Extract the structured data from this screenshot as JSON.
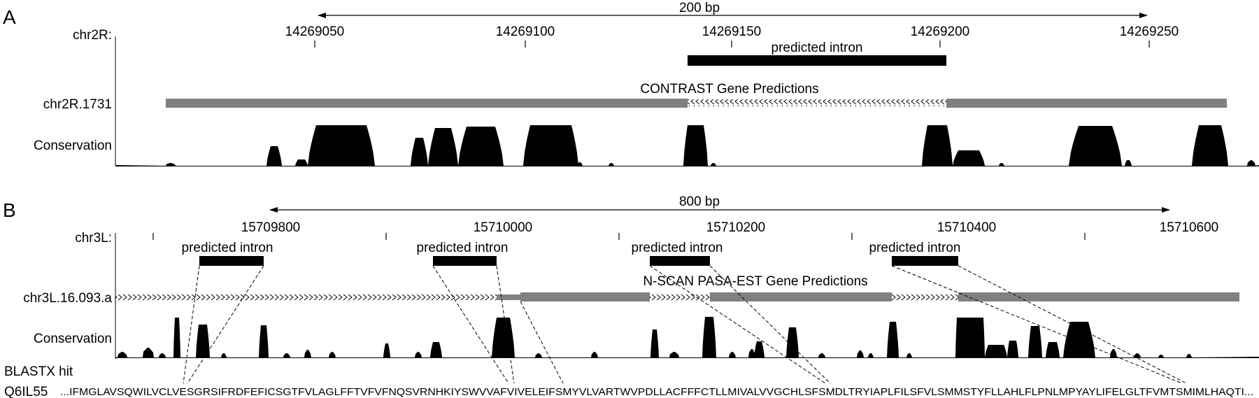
{
  "panel_a": {
    "letter": "A",
    "scale_label": "200 bp",
    "chrom_label": "chr2R:",
    "ticks": [
      "14269050",
      "14269100",
      "14269150",
      "14269200",
      "14269250"
    ],
    "intron_label": "predicted intron",
    "track_title": "CONTRAST Gene Predictions",
    "gene_label": "chr2R.1731",
    "conservation_label": "Conservation"
  },
  "panel_b": {
    "letter": "B",
    "scale_label": "800 bp",
    "chrom_label": "chr3L:",
    "ticks": [
      "15709800",
      "15710000",
      "15710200",
      "15710400",
      "15710600"
    ],
    "intron_labels": [
      "predicted intron",
      "predicted intron",
      "predicted intron",
      "predicted intron"
    ],
    "track_title": "N-SCAN PASA-EST Gene Predictions",
    "gene_label": "chr3L.16.093.a",
    "conservation_label": "Conservation",
    "blastx_label": "BLASTX hit",
    "protein_id": "Q6IL55",
    "protein_sequence": "...IFMGLAVSQWILVCLVESGRSIFRDFEFICSGTFVLAGLFFTVFVFNQSVRNHKIYSWVVAFVIVELEIFSMYVLVARTWVPDLLACFFFCTLLMIVALVVGCHLSFSMDLTRYIAPLFILSFVLSMMSTYFLLAHLFLPNLMPYAYLIFELGLTFVMTSMIMLHAQTI..."
  },
  "colors": {
    "ink": "#000000",
    "gene_bar": "#808080"
  }
}
